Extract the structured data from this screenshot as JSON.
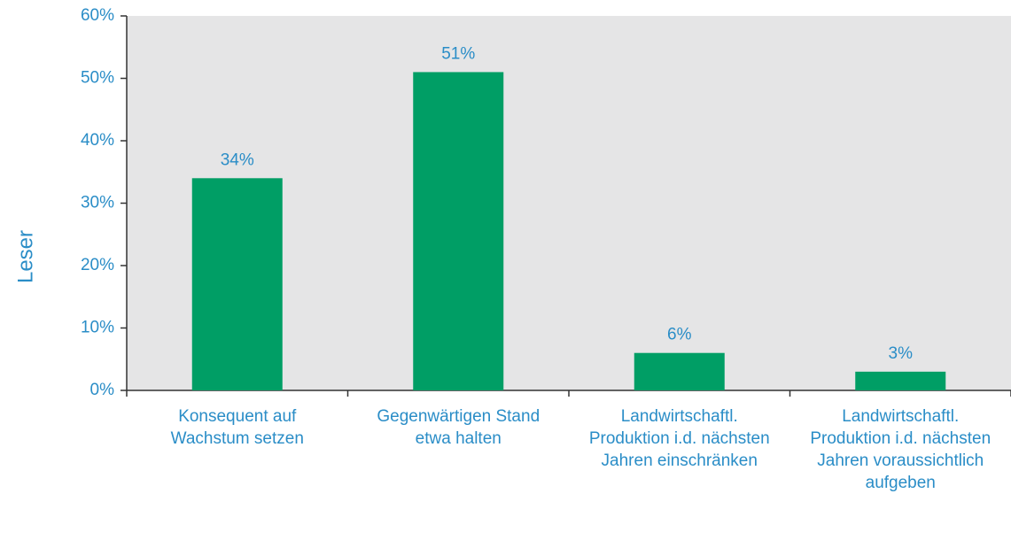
{
  "chart_data": {
    "type": "bar",
    "ylabel": "Leser",
    "categories": [
      "Konsequent auf Wachstum setzen",
      "Gegenwärtigen Stand etwa halten",
      "Landwirtschaftl. Produktion i.d. nächsten Jahren einschränken",
      "Landwirtschaftl. Produktion i.d. nächsten Jahren voraussichtlich aufgeben"
    ],
    "values": [
      34,
      51,
      6,
      3
    ],
    "value_labels": [
      "34%",
      "51%",
      "6%",
      "3%"
    ],
    "color": "#009e65",
    "ylim": [
      0,
      60
    ],
    "yticks": [
      {
        "value": 0,
        "label": "0%"
      },
      {
        "value": 10,
        "label": "10%"
      },
      {
        "value": 20,
        "label": "20%"
      },
      {
        "value": 30,
        "label": "30%"
      },
      {
        "value": 40,
        "label": "40%"
      },
      {
        "value": 50,
        "label": "50%"
      },
      {
        "value": 60,
        "label": "60%"
      }
    ]
  }
}
